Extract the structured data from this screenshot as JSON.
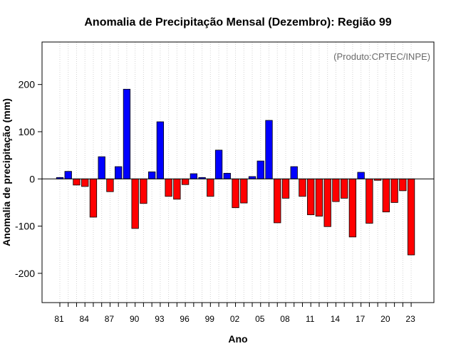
{
  "chart_data": {
    "type": "bar",
    "title": "Anomalia de Precipitação Mensal (Dezembro): Região 99",
    "xlabel": "Ano",
    "ylabel": "Anomalia de precipitação (mm)",
    "annotation": "(Produto:CPTEC/INPE)",
    "ylim": [
      -262,
      290
    ],
    "yticks": [
      -200,
      -100,
      0,
      100,
      200
    ],
    "grid": true,
    "colors": {
      "positive": "#0000ff",
      "negative": "#ff0000",
      "edge": "#000000",
      "grid": "#d3d3d3",
      "zero_line": "#000000"
    },
    "categories": [
      "1981",
      "1982",
      "1983",
      "1984",
      "1985",
      "1986",
      "1987",
      "1988",
      "1989",
      "1990",
      "1991",
      "1992",
      "1993",
      "1994",
      "1995",
      "1996",
      "1997",
      "1998",
      "1999",
      "2000",
      "2001",
      "2002",
      "2003",
      "2004",
      "2005",
      "2006",
      "2007",
      "2008",
      "2009",
      "2010",
      "2011",
      "2012",
      "2013",
      "2014",
      "2015",
      "2016",
      "2017",
      "2018",
      "2019",
      "2020",
      "2021",
      "2022",
      "2023"
    ],
    "xtick_labels": [
      "81",
      "84",
      "87",
      "90",
      "93",
      "96",
      "99",
      "02",
      "05",
      "08",
      "11",
      "14",
      "17",
      "20",
      "23"
    ],
    "values": [
      3,
      16,
      -13,
      -16,
      -81,
      47,
      -27,
      26,
      190,
      -105,
      -52,
      15,
      121,
      -37,
      -43,
      -12,
      11,
      3,
      -37,
      61,
      12,
      -61,
      -51,
      5,
      38,
      124,
      -93,
      -41,
      26,
      -37,
      -76,
      -79,
      -101,
      -48,
      -41,
      -123,
      14,
      -94,
      -3,
      -70,
      -50,
      -25,
      -161
    ]
  }
}
